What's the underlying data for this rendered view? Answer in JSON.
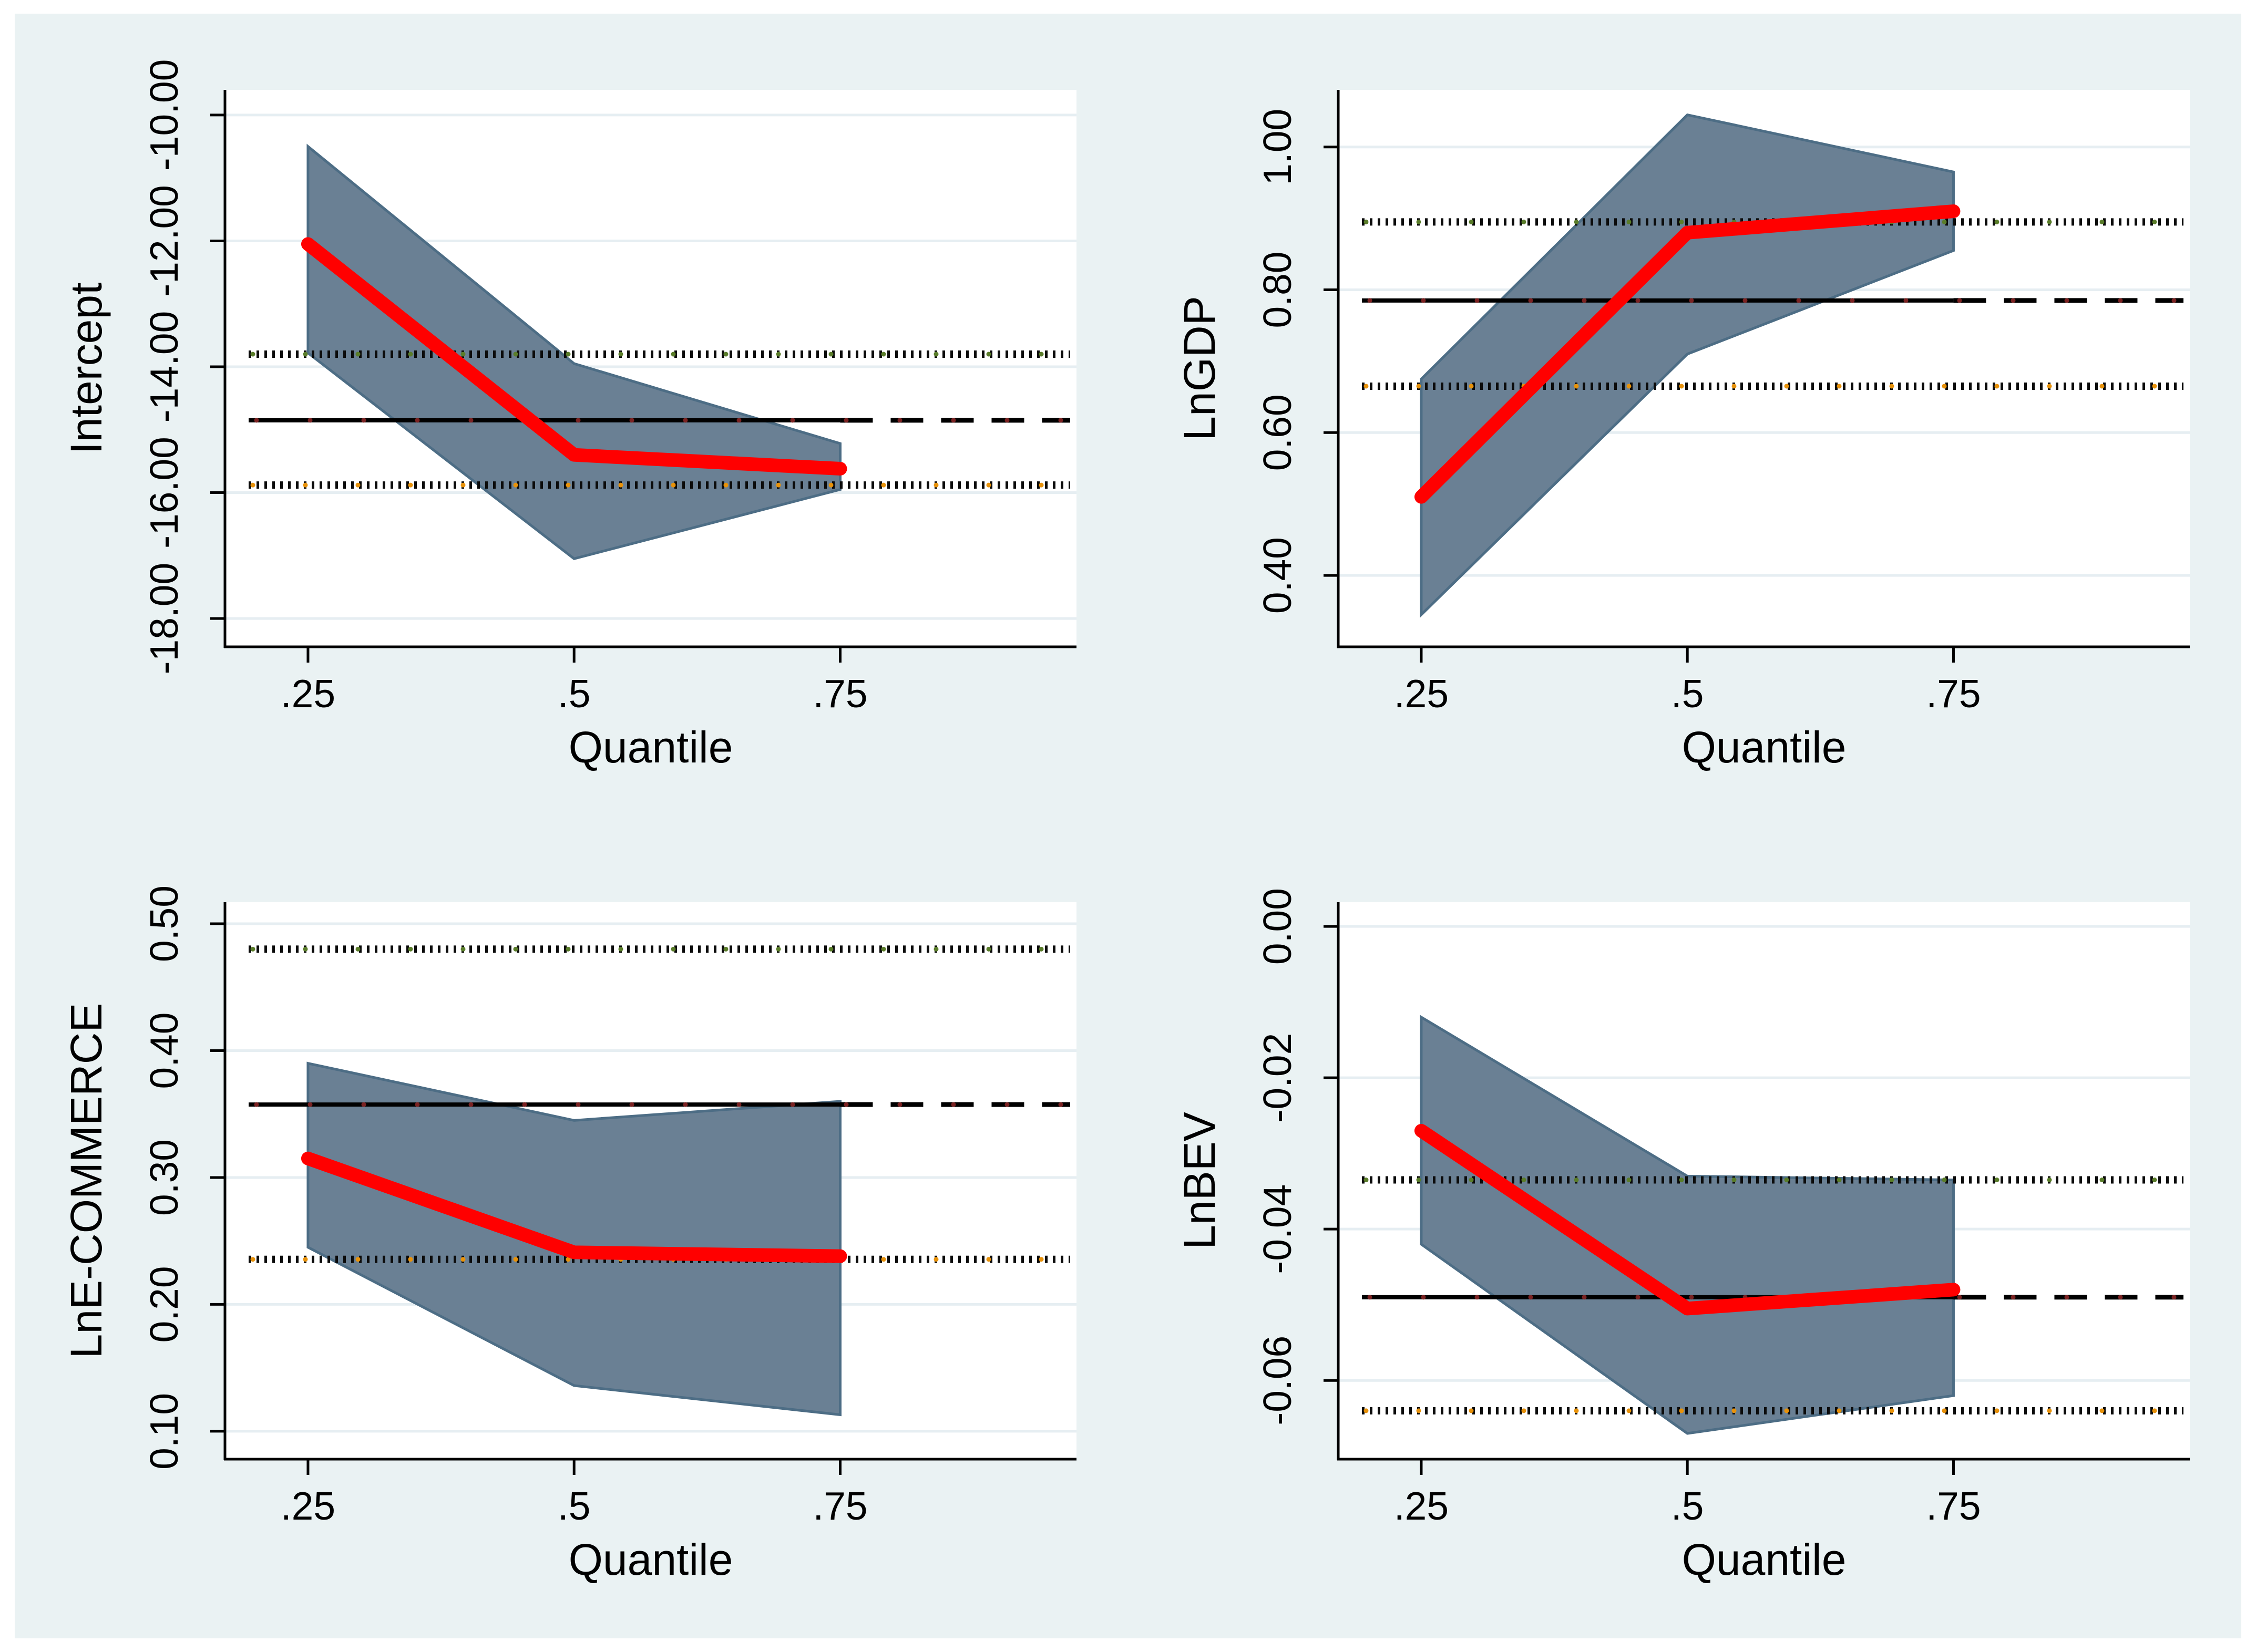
{
  "style": {
    "figure_bg": "#EAF2F3",
    "plot_bg": "#FFFFFF",
    "grid_color": "#E6EEF2",
    "axis_color": "#000000",
    "band_fill": "#6A8094",
    "band_edge": "#4D6D85",
    "quantile_line_color": "#FF0000",
    "ols_line_color": "#000000",
    "ols_dot_color": "#7A2222",
    "ci_upper_dot_color": "#5A7D2A",
    "ci_lower_dot_color": "#E8920A",
    "text_color": "#000000"
  },
  "chart_data": [
    {
      "type": "line",
      "panel": "intercept",
      "ylabel": "Intercept",
      "xlabel": "Quantile",
      "x": [
        0.25,
        0.5,
        0.75
      ],
      "xlim": [
        0.172,
        0.972
      ],
      "xtick_labels": [
        ".25",
        ".5",
        ".75"
      ],
      "series": [
        {
          "name": "quantile_estimate",
          "values": [
            -12.05,
            -15.4,
            -15.62
          ]
        },
        {
          "name": "ci_upper",
          "values": [
            -10.5,
            -13.95,
            -15.22
          ]
        },
        {
          "name": "ci_lower",
          "values": [
            -13.78,
            -17.05,
            -15.95
          ]
        }
      ],
      "ols_estimate": -14.85,
      "ols_ci_upper": -13.8,
      "ols_ci_lower": -15.88,
      "ylim": [
        -18.45,
        -9.6
      ],
      "yticks": [
        -10,
        -12,
        -14,
        -16,
        -18
      ],
      "ytick_labels": [
        "-10.00",
        "-12.00",
        "-14.00",
        "-16.00",
        "-18.00"
      ],
      "grid": true,
      "legend": false
    },
    {
      "type": "line",
      "panel": "lngdp",
      "ylabel": "LnGDP",
      "xlabel": "Quantile",
      "x": [
        0.25,
        0.5,
        0.75
      ],
      "xlim": [
        0.172,
        0.972
      ],
      "xtick_labels": [
        ".25",
        ".5",
        ".75"
      ],
      "series": [
        {
          "name": "quantile_estimate",
          "values": [
            0.51,
            0.88,
            0.91
          ]
        },
        {
          "name": "ci_upper",
          "values": [
            0.675,
            1.045,
            0.965
          ]
        },
        {
          "name": "ci_lower",
          "values": [
            0.345,
            0.71,
            0.855
          ]
        }
      ],
      "ols_estimate": 0.785,
      "ols_ci_upper": 0.895,
      "ols_ci_lower": 0.665,
      "ylim": [
        0.3,
        1.08
      ],
      "yticks": [
        1.0,
        0.8,
        0.6,
        0.4
      ],
      "ytick_labels": [
        "1.00",
        "0.80",
        "0.60",
        "0.40"
      ],
      "grid": true,
      "legend": false
    },
    {
      "type": "line",
      "panel": "lnecommerce",
      "ylabel": "LnE-COMMERCE",
      "xlabel": "Quantile",
      "x": [
        0.25,
        0.5,
        0.75
      ],
      "xlim": [
        0.172,
        0.972
      ],
      "xtick_labels": [
        ".25",
        ".5",
        ".75"
      ],
      "series": [
        {
          "name": "quantile_estimate",
          "values": [
            0.315,
            0.241,
            0.238
          ]
        },
        {
          "name": "ci_upper",
          "values": [
            0.39,
            0.345,
            0.36
          ]
        },
        {
          "name": "ci_lower",
          "values": [
            0.245,
            0.136,
            0.113
          ]
        }
      ],
      "ols_estimate": 0.3575,
      "ols_ci_upper": 0.48,
      "ols_ci_lower": 0.2355,
      "ylim": [
        0.078,
        0.517
      ],
      "yticks": [
        0.5,
        0.4,
        0.3,
        0.2,
        0.1
      ],
      "ytick_labels": [
        "0.50",
        "0.40",
        "0.30",
        "0.20",
        "0.10"
      ],
      "grid": true,
      "legend": false
    },
    {
      "type": "line",
      "panel": "lnbev",
      "ylabel": "LnBEV",
      "xlabel": "Quantile",
      "x": [
        0.25,
        0.5,
        0.75
      ],
      "xlim": [
        0.172,
        0.972
      ],
      "xtick_labels": [
        ".25",
        ".5",
        ".75"
      ],
      "series": [
        {
          "name": "quantile_estimate",
          "values": [
            -0.027,
            -0.0505,
            -0.048
          ]
        },
        {
          "name": "ci_upper",
          "values": [
            -0.012,
            -0.033,
            -0.0335
          ]
        },
        {
          "name": "ci_lower",
          "values": [
            -0.042,
            -0.067,
            -0.062
          ]
        }
      ],
      "ols_estimate": -0.049,
      "ols_ci_upper": -0.0335,
      "ols_ci_lower": -0.064,
      "ylim": [
        -0.0704,
        0.0032
      ],
      "yticks": [
        0.0,
        -0.02,
        -0.04,
        -0.06
      ],
      "ytick_labels": [
        "0.00",
        "-0.02",
        "-0.04",
        "-0.06"
      ],
      "grid": true,
      "legend": false
    }
  ]
}
